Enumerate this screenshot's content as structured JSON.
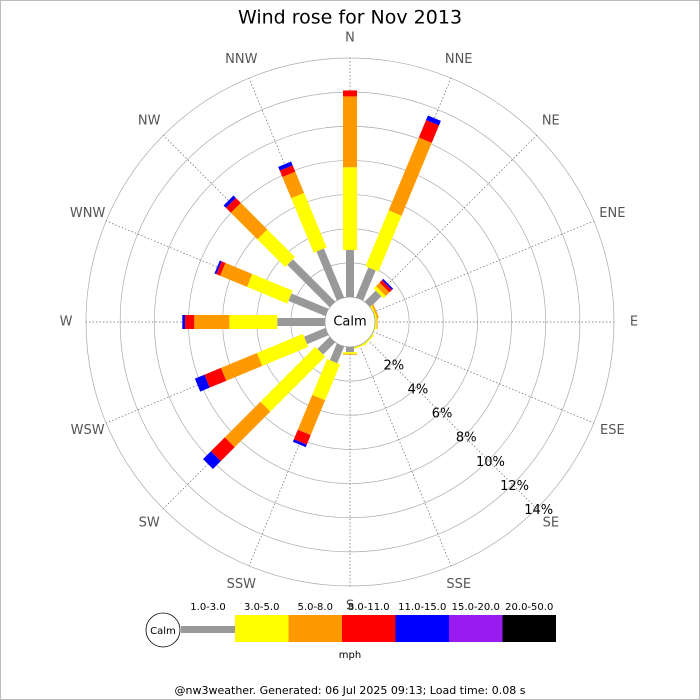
{
  "chart_data": {
    "type": "wind_rose",
    "title": "Wind rose for Nov 2013",
    "categories": [
      "N",
      "NNE",
      "NE",
      "ENE",
      "E",
      "ESE",
      "SE",
      "SSE",
      "S",
      "SSW",
      "SW",
      "WSW",
      "W",
      "WNW",
      "NW",
      "NNW"
    ],
    "calm_label": "Calm",
    "unit": "mph",
    "ylim": [
      0,
      14
    ],
    "yticks": [
      {
        "value": 2,
        "label": "2%"
      },
      {
        "value": 4,
        "label": "4%"
      },
      {
        "value": 6,
        "label": "6%"
      },
      {
        "value": 8,
        "label": "8%"
      },
      {
        "value": 10,
        "label": "10%"
      },
      {
        "value": 12,
        "label": "12%"
      },
      {
        "value": 14,
        "label": "14%"
      }
    ],
    "series": [
      {
        "name": "1.0-3.0",
        "color": "#999999",
        "values": [
          2.75,
          1.9,
          0.9,
          0,
          0,
          0,
          0,
          0,
          0.3,
          1.05,
          1.0,
          1.35,
          2.8,
          2.34,
          3.5,
          3.1
        ]
      },
      {
        "name": "3.0-5.0",
        "color": "#ffff00",
        "values": [
          4.85,
          3.54,
          0.2,
          0.1,
          0.1,
          0.05,
          0.1,
          0.1,
          0.1,
          2.28,
          4.55,
          2.92,
          2.8,
          2.56,
          2.3,
          3.45
        ]
      },
      {
        "name": "5.0-8.0",
        "color": "#ff9900",
        "values": [
          4.15,
          4.62,
          0.3,
          0.1,
          0.05,
          0,
          0,
          0,
          0.05,
          2.21,
          2.95,
          2.28,
          2.06,
          1.7,
          2.2,
          1.35
        ]
      },
      {
        "name": "8.0-11.0",
        "color": "#ff0000",
        "values": [
          0.35,
          1.11,
          0.2,
          0,
          0,
          0,
          0,
          0,
          0,
          0.6,
          1.15,
          1.05,
          0.54,
          0.25,
          0.4,
          0.4
        ]
      },
      {
        "name": "11.0-15.0",
        "color": "#0000ff",
        "values": [
          0,
          0.29,
          0.1,
          0,
          0,
          0,
          0,
          0,
          0,
          0.16,
          0.65,
          0.6,
          0.16,
          0.11,
          0.2,
          0.24
        ]
      },
      {
        "name": "15.0-20.0",
        "color": "#9a1bf0",
        "values": [
          0,
          0,
          0,
          0,
          0,
          0,
          0,
          0,
          0,
          0,
          0,
          0,
          0,
          0,
          0,
          0
        ]
      },
      {
        "name": "20.0-50.0",
        "color": "#000000",
        "values": [
          0,
          0,
          0,
          0,
          0,
          0,
          0,
          0,
          0,
          0,
          0,
          0,
          0,
          0,
          0,
          0
        ]
      }
    ]
  },
  "footer": "@nw3weather. Generated: 06 Jul 2025 09:13; Load time: 0.08 s"
}
